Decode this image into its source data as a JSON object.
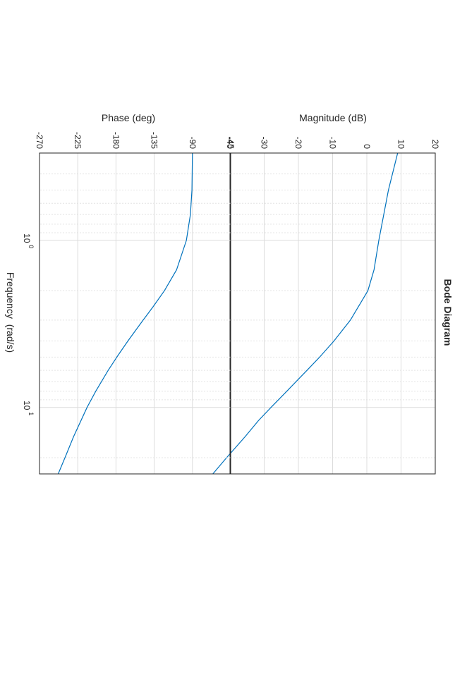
{
  "chart_data": [
    {
      "type": "line",
      "title": "Bode Diagram",
      "xlabel": "",
      "ylabel": "Magnitude (dB)",
      "x_scale": "log",
      "xlim": [
        0.3,
        25
      ],
      "ylim": [
        -40,
        20
      ],
      "yticks": [
        "20",
        "10",
        "0",
        "-10",
        "-20",
        "-30",
        "-40"
      ],
      "xticks": [
        {
          "base": "10",
          "exp": "0",
          "value": 1
        },
        {
          "base": "10",
          "exp": "1",
          "value": 10
        }
      ],
      "grid": true,
      "series": [
        {
          "color": "#0072BD",
          "x": [
            0.3,
            0.5,
            1,
            1.5,
            2,
            3,
            4,
            5,
            6,
            8,
            10,
            12,
            15,
            20,
            25
          ],
          "y": [
            9.0,
            6.3,
            3.5,
            2.1,
            0.3,
            -4.8,
            -9.6,
            -13.8,
            -17.5,
            -23.4,
            -28.0,
            -31.7,
            -35.6,
            -41.0,
            -45.0
          ]
        }
      ]
    },
    {
      "type": "line",
      "xlabel": "Frequency  (rad/s)",
      "ylabel": "Phase (deg)",
      "x_scale": "log",
      "xlim": [
        0.3,
        25
      ],
      "ylim": [
        -270,
        -45
      ],
      "yticks": [
        "-45",
        "-90",
        "-135",
        "-180",
        "-225",
        "-270"
      ],
      "xticks": [
        {
          "base": "10",
          "exp": "0",
          "value": 1
        },
        {
          "base": "10",
          "exp": "1",
          "value": 10
        }
      ],
      "grid": true,
      "series": [
        {
          "color": "#0072BD",
          "x": [
            0.3,
            0.5,
            0.7,
            1,
            1.5,
            2,
            2.5,
            3,
            4,
            5,
            6,
            8,
            10,
            15,
            20,
            25
          ],
          "y": [
            -90.0,
            -90.6,
            -92.4,
            -97.1,
            -108.7,
            -123.0,
            -136.4,
            -148.0,
            -166.0,
            -179.0,
            -189.2,
            -203.8,
            -214.0,
            -230.0,
            -240.0,
            -248.0
          ]
        }
      ]
    }
  ]
}
